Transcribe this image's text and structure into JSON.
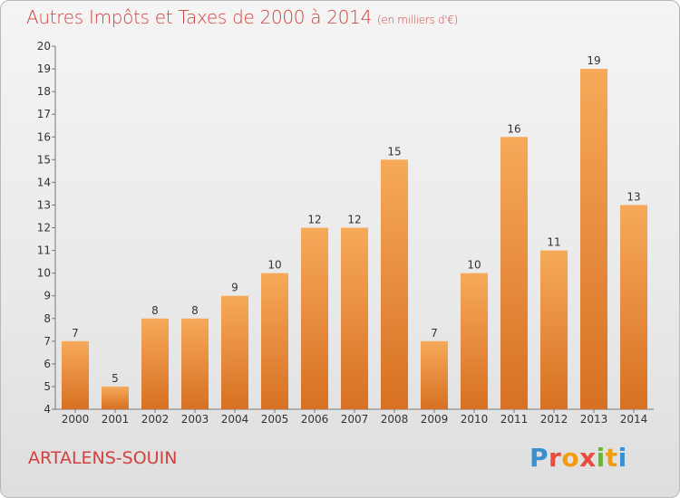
{
  "title": "Autres Impôts et Taxes de 2000 à 2014",
  "unit": "(en milliers d'€)",
  "commune": "ARTALENS-SOUIN",
  "logo": "Proxiti",
  "colors": {
    "bar_light": "#f7a95a",
    "bar_dark": "#d77022",
    "text": "#d0413f"
  },
  "chart_data": {
    "type": "bar",
    "categories": [
      "2000",
      "2001",
      "2002",
      "2003",
      "2004",
      "2005",
      "2006",
      "2007",
      "2008",
      "2009",
      "2010",
      "2011",
      "2012",
      "2013",
      "2014"
    ],
    "values": [
      7,
      5,
      8,
      8,
      9,
      10,
      12,
      12,
      15,
      7,
      10,
      16,
      11,
      19,
      13
    ],
    "title": "Autres Impôts et Taxes de 2000 à 2014",
    "xlabel": "",
    "ylabel": "",
    "ylim": [
      4,
      20
    ],
    "yticks": [
      4,
      5,
      6,
      7,
      8,
      9,
      10,
      11,
      12,
      13,
      14,
      15,
      16,
      17,
      18,
      19,
      20
    ],
    "grid": false,
    "legend": "none"
  }
}
